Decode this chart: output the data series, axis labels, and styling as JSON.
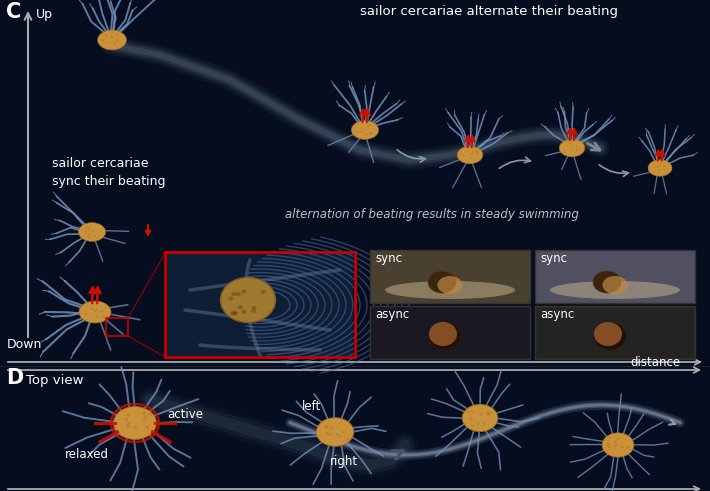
{
  "bg_color": "#050d1f",
  "text_color": "#ffffff",
  "label_C": "C",
  "label_D": "D",
  "up_label": "Up",
  "down_label": "Down",
  "distance_label": "distance",
  "top_view_label": "Top view",
  "sync_label1": "sync",
  "sync_label2": "sync",
  "async_label1": "async",
  "async_label2": "async",
  "sailor_sync": "sailor cercariae\nsync their beating",
  "sailor_alt": "sailor cercariae alternate their beating",
  "alt_result": "alternation of beating results in steady swimming",
  "relaxed_label": "relaxed",
  "active_label": "active",
  "left_label": "left",
  "right_label": "right",
  "worm_body_color": "#c8913a",
  "worm_body_dark": "#a06820",
  "worm_tail_color": "#7090bb",
  "worm_tail_light": "#8ab0d0",
  "red_accent": "#cc1100",
  "sweep_arrow_color": "#334455",
  "axis_color": "#aaaaaa",
  "photo_bg_sync1": "#8a7a60",
  "photo_bg_sync2": "#606070",
  "photo_bg_async1": "#303040",
  "photo_bg_async2": "#404035",
  "red_box_color": "#cc0000",
  "panel_divider": "#1a2035",
  "sweep_color": "#2a3a4a",
  "path_D_color": "#556677"
}
